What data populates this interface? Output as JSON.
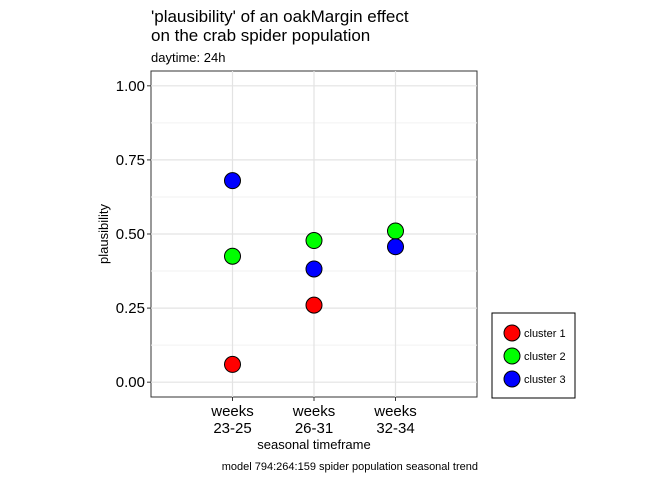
{
  "chart_data": {
    "type": "scatter",
    "title_lines": [
      "'plausibility' of an oakMargin effect",
      "on the crab spider population"
    ],
    "subtitle": "daytime: 24h",
    "xlabel": "seasonal timeframe",
    "ylabel": "plausibility",
    "caption": "model 794:264:159 spider population seasonal trend",
    "ylim": [
      -0.05,
      1.05
    ],
    "yticks": [
      0.0,
      0.25,
      0.5,
      0.75,
      1.0
    ],
    "ytick_labels": [
      "0.00",
      "0.25",
      "0.50",
      "0.75",
      "1.00"
    ],
    "categories": [
      [
        "weeks",
        "23-25"
      ],
      [
        "weeks",
        "26-31"
      ],
      [
        "weeks",
        "32-34"
      ]
    ],
    "grid": true,
    "legend_position": "right-bottom",
    "series": [
      {
        "name": "cluster 1",
        "color": "#ff0000",
        "values": [
          0.06,
          0.26,
          null
        ]
      },
      {
        "name": "cluster 2",
        "color": "#00ff00",
        "values": [
          0.425,
          0.478,
          0.51
        ]
      },
      {
        "name": "cluster 3",
        "color": "#0000ff",
        "values": [
          0.68,
          0.382,
          0.457
        ]
      }
    ]
  }
}
